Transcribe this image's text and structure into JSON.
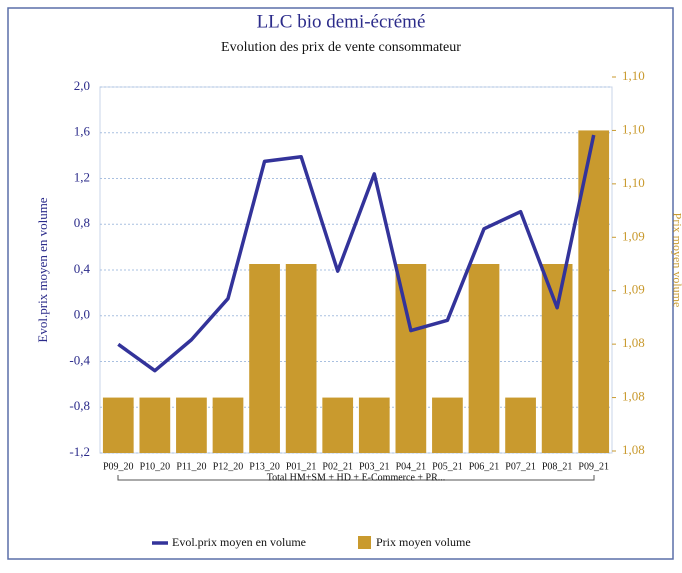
{
  "chart_data": {
    "type": "bar-line",
    "title": "LLC bio demi-écrémé",
    "subtitle": "Evolution des prix de vente consommateur",
    "y_label": "Evol.prix moyen en volume",
    "y2_label": "Prix moyen volume",
    "group_label": "Total HM+SM + HD + E-Commerce + PR...",
    "categories": [
      "P09_20",
      "P10_20",
      "P11_20",
      "P12_20",
      "P13_20",
      "P01_21",
      "P02_21",
      "P03_21",
      "P04_21",
      "P05_21",
      "P06_21",
      "P07_21",
      "P08_21",
      "P09_21"
    ],
    "series": [
      {
        "name": "Evol.prix moyen en volume",
        "type": "line",
        "color": "#33339a",
        "axis": "y",
        "values": [
          -0.25,
          -0.48,
          -0.21,
          0.15,
          1.35,
          1.39,
          0.39,
          1.24,
          -0.13,
          -0.04,
          0.76,
          0.91,
          0.07,
          1.58
        ]
      },
      {
        "name": "Prix moyen volume",
        "type": "bar",
        "color": "#c99a2e",
        "axis": "y2",
        "values": [
          1.08,
          1.08,
          1.08,
          1.08,
          1.09,
          1.09,
          1.08,
          1.08,
          1.09,
          1.08,
          1.09,
          1.08,
          1.09,
          1.1
        ]
      }
    ],
    "ylim": [
      -1.2,
      2.0
    ],
    "yticks": [
      {
        "value": -1.2,
        "label": "-1,2"
      },
      {
        "value": -0.8,
        "label": "-0,8"
      },
      {
        "value": -0.4,
        "label": "-0,4"
      },
      {
        "value": 0,
        "label": "0,0"
      },
      {
        "value": 0.4,
        "label": "0,4"
      },
      {
        "value": 0.8,
        "label": "0,8"
      },
      {
        "value": 1.2,
        "label": "1,2"
      },
      {
        "value": 1.6,
        "label": "1,6"
      },
      {
        "value": 2.0,
        "label": "2,0"
      }
    ],
    "y2lim": [
      1.076,
      1.104
    ],
    "y2ticks": [
      {
        "value": 1.076,
        "label": "1,08"
      },
      {
        "value": 1.08,
        "label": "1,08"
      },
      {
        "value": 1.084,
        "label": "1,08"
      },
      {
        "value": 1.088,
        "label": "1,09"
      },
      {
        "value": 1.092,
        "label": "1,09"
      },
      {
        "value": 1.096,
        "label": "1,10"
      },
      {
        "value": 1.1,
        "label": "1,10"
      },
      {
        "value": 1.104,
        "label": "1,10"
      }
    ],
    "grid": true
  }
}
